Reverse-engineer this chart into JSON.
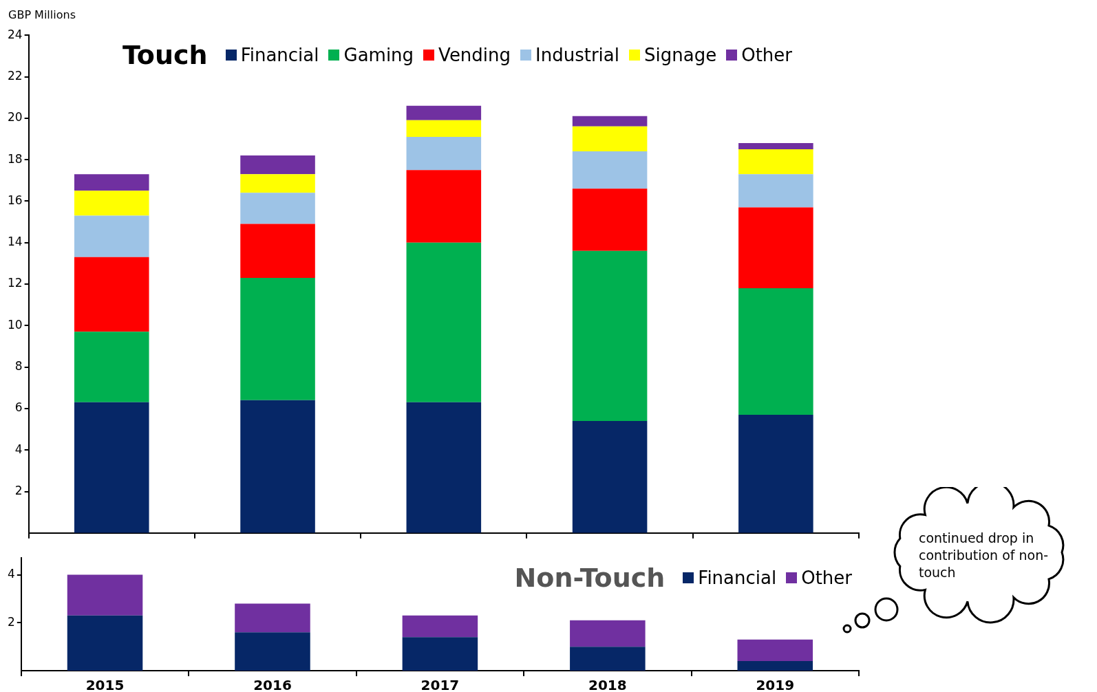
{
  "chart_data": [
    {
      "type": "bar",
      "stacked": true,
      "legend_title": "Touch",
      "ylabel": "GBP Millions",
      "categories": [
        "2015",
        "2016",
        "2017",
        "2018",
        "2019"
      ],
      "ylim": [
        0,
        24
      ],
      "yticks": [
        2,
        4,
        6,
        8,
        10,
        12,
        14,
        16,
        18,
        20,
        22,
        24
      ],
      "tick_labels": "y",
      "grid": false,
      "legend": "top",
      "series": [
        {
          "name": "Financial",
          "color": "#062767",
          "values": [
            6.3,
            6.4,
            6.3,
            5.4,
            5.7
          ]
        },
        {
          "name": "Gaming",
          "color": "#00b050",
          "values": [
            3.4,
            5.9,
            7.7,
            8.2,
            6.1
          ]
        },
        {
          "name": "Vending",
          "color": "#ff0000",
          "values": [
            3.6,
            2.6,
            3.5,
            3.0,
            3.9
          ]
        },
        {
          "name": "Industrial",
          "color": "#9dc3e6",
          "values": [
            2.0,
            1.5,
            1.6,
            1.8,
            1.6
          ]
        },
        {
          "name": "Signage",
          "color": "#ffff00",
          "values": [
            1.2,
            0.9,
            0.8,
            1.2,
            1.2
          ]
        },
        {
          "name": "Other",
          "color": "#7030a0",
          "values": [
            0.8,
            0.9,
            0.7,
            0.5,
            0.3
          ]
        }
      ]
    },
    {
      "type": "bar",
      "stacked": true,
      "legend_title": "Non-Touch",
      "categories": [
        "2015",
        "2016",
        "2017",
        "2018",
        "2019"
      ],
      "ylim": [
        0,
        4.7
      ],
      "yticks": [
        2,
        4
      ],
      "grid": false,
      "legend": "top right",
      "annotations": [
        "continued drop in contribution of non-touch"
      ],
      "series": [
        {
          "name": "Financial",
          "color": "#062767",
          "values": [
            2.3,
            1.6,
            1.4,
            1.0,
            0.4
          ]
        },
        {
          "name": "Other",
          "color": "#7030a0",
          "values": [
            1.7,
            1.2,
            0.9,
            1.1,
            0.9
          ]
        }
      ]
    }
  ]
}
